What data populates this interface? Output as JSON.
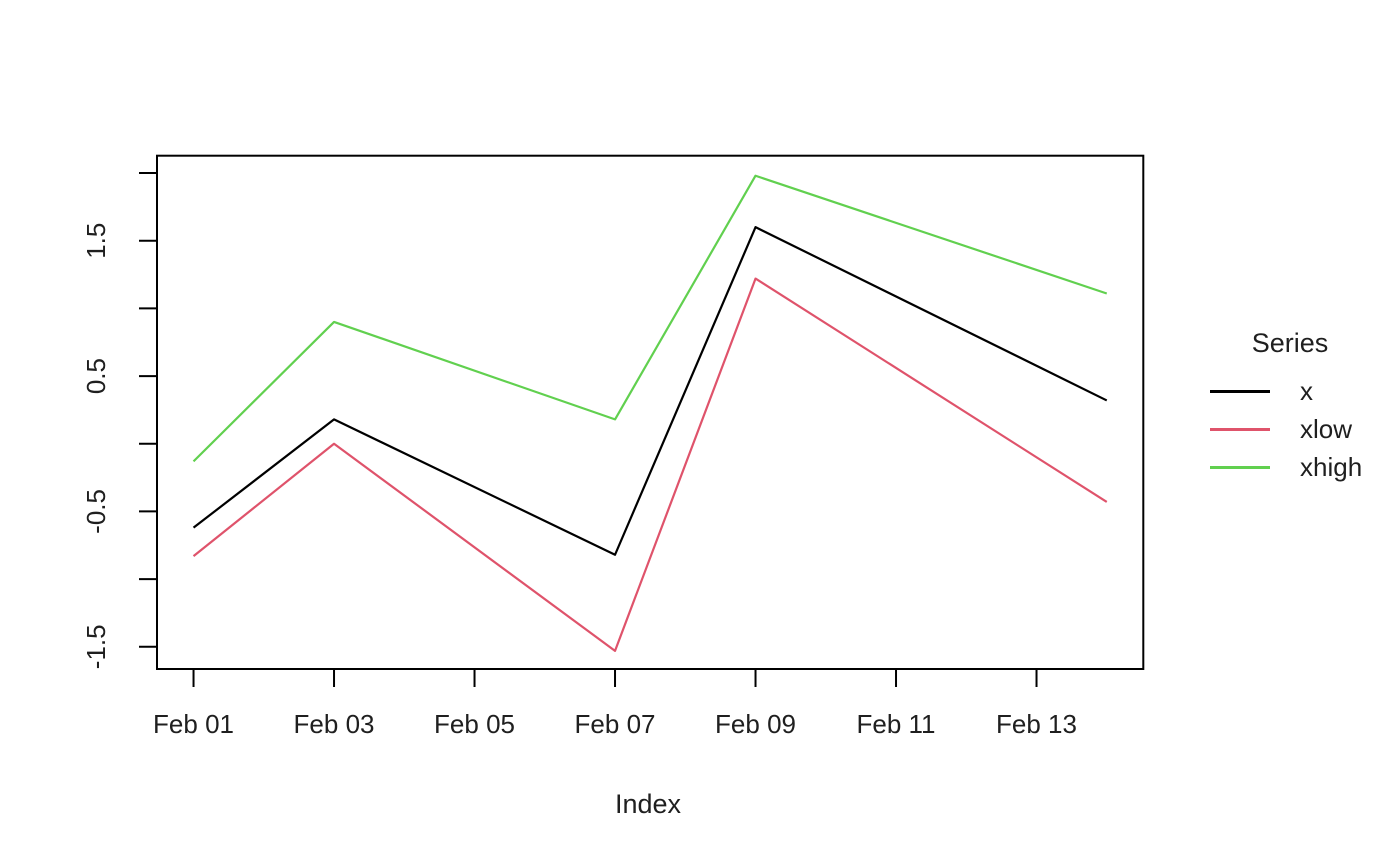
{
  "chart_data": {
    "type": "line",
    "title": "",
    "xlabel": "Index",
    "ylabel": "",
    "x_axis": {
      "unit": "date",
      "tick_days": [
        1,
        3,
        5,
        7,
        9,
        11,
        13
      ],
      "tick_labels": [
        "Feb 01",
        "Feb 03",
        "Feb 05",
        "Feb 07",
        "Feb 09",
        "Feb 11",
        "Feb 13"
      ],
      "lim_days": [
        0.48,
        14.52
      ]
    },
    "y_axis": {
      "tick_values": [
        2.0,
        1.5,
        1.0,
        0.5,
        0.0,
        -0.5,
        -1.0,
        -1.5
      ],
      "tick_labels": [
        "",
        "1.5",
        "",
        "0.5",
        "",
        "-0.5",
        "",
        "-1.5"
      ],
      "lim": [
        -1.664,
        2.128
      ]
    },
    "x_days": [
      1,
      3,
      7,
      9,
      14
    ],
    "x_point_labels": [
      "Feb 01",
      "Feb 03",
      "Feb 07",
      "Feb 09",
      "Feb 14"
    ],
    "series": [
      {
        "name": "x",
        "color": "#000000",
        "values": [
          -0.62,
          0.18,
          -0.82,
          1.6,
          0.32
        ]
      },
      {
        "name": "xlow",
        "color": "#DF536B",
        "values": [
          -0.83,
          0.0,
          -1.53,
          1.22,
          -0.43
        ]
      },
      {
        "name": "xhigh",
        "color": "#61D04F",
        "values": [
          -0.13,
          0.9,
          0.18,
          1.98,
          1.11
        ]
      }
    ],
    "legend": {
      "title": "Series",
      "entries": [
        "x",
        "xlow",
        "xhigh"
      ],
      "position": "right-outside"
    },
    "grid": false,
    "frame_box": true
  }
}
